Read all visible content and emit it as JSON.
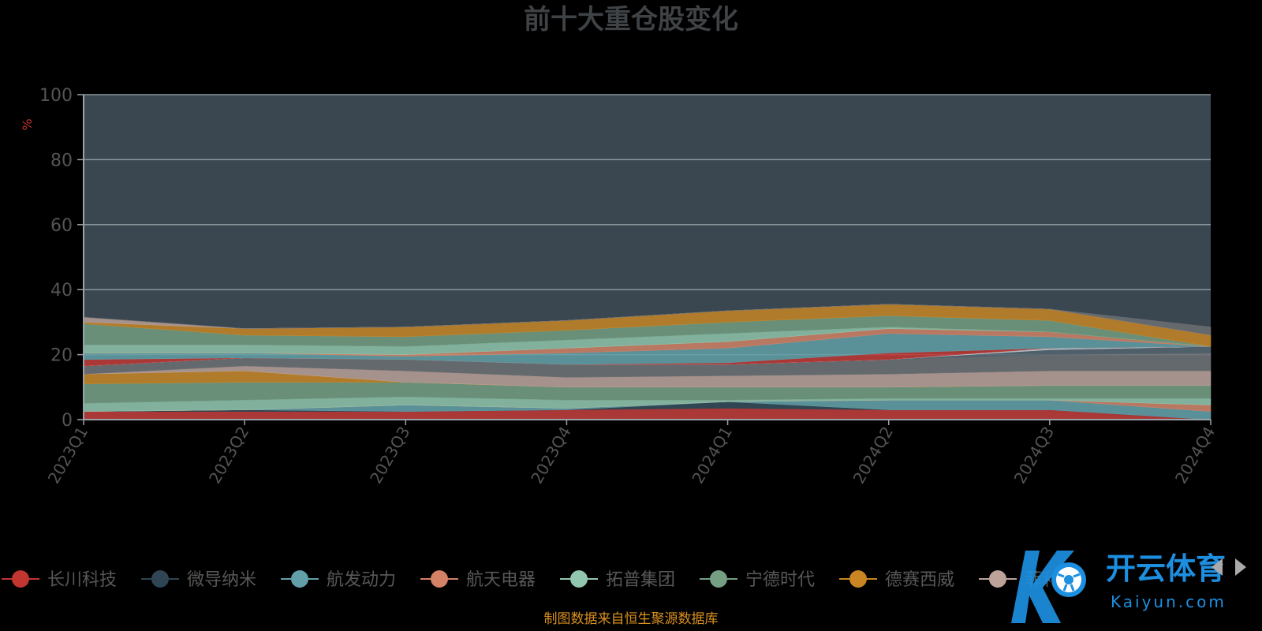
{
  "colors": {
    "background": "#000000",
    "plot_bg": "#3a4750",
    "grid": "#8a959b",
    "axis": "#9aa3a8",
    "title": "#3f4346",
    "tick": "#545454",
    "unit": "#c23531",
    "source": "#d8901f",
    "legend_text": "#575757",
    "watermark_blue": "#1d8fe1"
  },
  "watermark": {
    "text": "开云体育",
    "sub": "Kaiyun.com",
    "icon": "soccer-ball-icon"
  },
  "legend_nav": {
    "prev_icon": "chevron-left-icon",
    "next_icon": "chevron-right-icon"
  },
  "chart_data": {
    "type": "area",
    "stacked": true,
    "title": "前十大重仓股变化",
    "ylabel": "%",
    "xlabel": "",
    "ylim": [
      0,
      100
    ],
    "yticks": [
      0,
      20,
      40,
      60,
      80,
      100
    ],
    "x_tick_rotation": -60,
    "categories": [
      "2023Q1",
      "2023Q2",
      "2023Q3",
      "2023Q4",
      "2024Q1",
      "2024Q2",
      "2024Q3",
      "2024Q4"
    ],
    "grid": true,
    "legend_position": "bottom",
    "source": "制图数据来自恒生聚源数据库",
    "series": [
      {
        "name": "长川科技",
        "color": "#c23531",
        "values": [
          2.5,
          2.5,
          2.5,
          3.0,
          3.5,
          3.0,
          3.0,
          0.0
        ]
      },
      {
        "name": "微导纳米",
        "color": "#2f4554",
        "values": [
          0.0,
          0.5,
          0.0,
          0.0,
          2.0,
          0.0,
          0.0,
          0.0
        ]
      },
      {
        "name": "航发动力",
        "color": "#61a0a8",
        "values": [
          0.0,
          0.0,
          2.0,
          0.5,
          0.0,
          3.0,
          3.0,
          2.5
        ]
      },
      {
        "name": "航天电器",
        "color": "#d48265",
        "values": [
          0.0,
          0.0,
          0.0,
          0.0,
          0.0,
          0.0,
          0.0,
          2.0
        ]
      },
      {
        "name": "拓普集团",
        "color": "#91c7ae",
        "values": [
          2.5,
          3.0,
          2.5,
          2.5,
          0.5,
          0.5,
          0.5,
          2.0
        ]
      },
      {
        "name": "宁德时代",
        "color": "#749f83",
        "values": [
          6.0,
          5.5,
          4.5,
          4.0,
          4.0,
          3.5,
          4.0,
          4.0
        ]
      },
      {
        "name": "德赛西威",
        "color": "#ca8622",
        "values": [
          3.0,
          3.5,
          0.0,
          0.0,
          0.0,
          0.0,
          0.0,
          0.0
        ]
      },
      {
        "name": "菲利华",
        "color": "#bda29a",
        "values": [
          0.0,
          1.5,
          3.5,
          3.0,
          3.5,
          4.0,
          4.5,
          4.5
        ]
      },
      {
        "name": "",
        "color": "#6e7074",
        "values": [
          2.5,
          2.5,
          3.5,
          4.0,
          3.5,
          4.5,
          5.0,
          5.5
        ]
      },
      {
        "name": "",
        "color": "#546570",
        "values": [
          0.0,
          0.0,
          0.0,
          0.0,
          0.0,
          0.0,
          1.5,
          2.0
        ]
      },
      {
        "name": "",
        "color": "#c4ccd3",
        "values": [
          0.0,
          0.0,
          0.0,
          0.0,
          0.0,
          0.0,
          0.5,
          0.0
        ]
      },
      {
        "name": "",
        "color": "#c23531",
        "values": [
          2.0,
          0.0,
          0.0,
          0.0,
          0.5,
          2.0,
          0.0,
          0.0
        ]
      },
      {
        "name": "",
        "color": "#61a0a8",
        "values": [
          2.0,
          1.5,
          1.0,
          3.5,
          4.5,
          6.0,
          3.5,
          0.0
        ]
      },
      {
        "name": "",
        "color": "#d48265",
        "values": [
          0.0,
          0.0,
          0.5,
          1.5,
          2.0,
          1.5,
          1.5,
          0.0
        ]
      },
      {
        "name": "",
        "color": "#91c7ae",
        "values": [
          2.5,
          2.5,
          2.5,
          2.5,
          2.5,
          0.5,
          0.0,
          0.0
        ]
      },
      {
        "name": "",
        "color": "#749f83",
        "values": [
          6.5,
          3.0,
          3.0,
          3.0,
          3.5,
          3.5,
          3.5,
          0.0
        ]
      },
      {
        "name": "",
        "color": "#ca8622",
        "values": [
          0.5,
          2.0,
          3.0,
          3.0,
          3.5,
          3.5,
          3.5,
          3.5
        ]
      },
      {
        "name": "",
        "color": "#bda29a",
        "values": [
          1.5,
          0.0,
          0.0,
          0.0,
          0.0,
          0.0,
          0.0,
          0.0
        ]
      },
      {
        "name": "",
        "color": "#6e7074",
        "values": [
          0.0,
          0.0,
          0.0,
          0.0,
          0.0,
          0.0,
          0.0,
          2.5
        ]
      }
    ]
  }
}
